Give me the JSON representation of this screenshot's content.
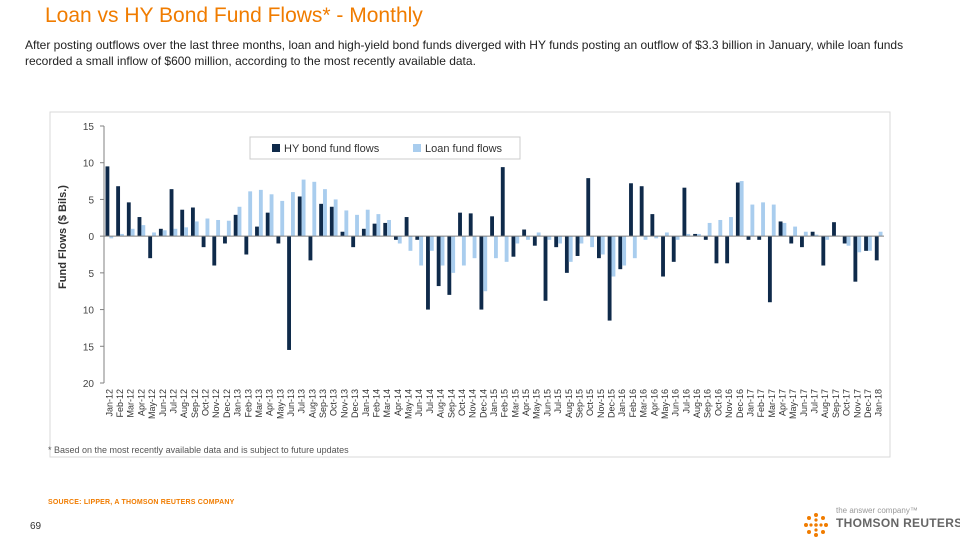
{
  "header": {
    "title": "Loan vs HY Bond Fund Flows* - Monthly",
    "subtitle": "After posting outflows over the last three months, loan and high-yield bond funds diverged with HY funds posting an outflow of $3.3 billion in January, while loan funds recorded a small inflow of $600 million, according to the most recently available data."
  },
  "footer": {
    "footnote": "* Based on the most recently available data and is subject to future updates",
    "source": "SOURCE: LIPPER, A THOMSON REUTERS COMPANY",
    "page_number": "69",
    "brand_tagline": "the answer company™",
    "brand_name": "THOMSON REUTERS®"
  },
  "colors": {
    "title": "#f07c00",
    "hy": "#0f2a4a",
    "loan": "#a9cdee",
    "axis": "#808080",
    "grid": "#e0e0e0"
  },
  "chart_data": {
    "type": "bar",
    "title": "Loan vs HY Bond Fund Flows* - Monthly",
    "xlabel": "",
    "ylabel": "Fund Flows ($ Bils.)",
    "ylim": [
      -20,
      15
    ],
    "yticks": [
      15,
      10,
      5,
      0,
      -5,
      -10,
      -15,
      -20
    ],
    "ytick_labels": [
      "15",
      "10",
      "5",
      "0",
      "5",
      "10",
      "15",
      "20"
    ],
    "grid": false,
    "legend_position": "top-center",
    "categories": [
      "Jan-12",
      "Feb-12",
      "Mar-12",
      "Apr-12",
      "May-12",
      "Jun-12",
      "Jul-12",
      "Aug-12",
      "Sep-12",
      "Oct-12",
      "Nov-12",
      "Dec-12",
      "Jan-13",
      "Feb-13",
      "Mar-13",
      "Apr-13",
      "May-13",
      "Jun-13",
      "Jul-13",
      "Aug-13",
      "Sep-13",
      "Oct-13",
      "Nov-13",
      "Dec-13",
      "Jan-14",
      "Feb-14",
      "Mar-14",
      "Apr-14",
      "May-14",
      "Jun-14",
      "Jul-14",
      "Aug-14",
      "Sep-14",
      "Oct-14",
      "Nov-14",
      "Dec-14",
      "Jan-15",
      "Feb-15",
      "Mar-15",
      "Apr-15",
      "May-15",
      "Jun-15",
      "Jul-15",
      "Aug-15",
      "Sep-15",
      "Oct-15",
      "Nov-15",
      "Dec-15",
      "Jan-16",
      "Feb-16",
      "Mar-16",
      "Apr-16",
      "May-16",
      "Jun-16",
      "Jul-16",
      "Aug-16",
      "Sep-16",
      "Oct-16",
      "Nov-16",
      "Dec-16",
      "Jan-17",
      "Feb-17",
      "Mar-17",
      "Apr-17",
      "May-17",
      "Jun-17",
      "Jul-17",
      "Aug-17",
      "Sep-17",
      "Oct-17",
      "Nov-17",
      "Dec-17",
      "Jan-18"
    ],
    "series": [
      {
        "name": "HY bond fund flows",
        "values": [
          9.5,
          6.8,
          4.6,
          2.6,
          -3.0,
          1.0,
          6.4,
          3.6,
          3.9,
          -1.5,
          -4.0,
          -1.0,
          2.9,
          -2.5,
          1.3,
          3.2,
          -1.0,
          -15.5,
          5.4,
          -3.3,
          4.4,
          4.0,
          0.6,
          -1.5,
          1.0,
          1.7,
          1.8,
          -0.5,
          2.6,
          -0.5,
          -10.0,
          -6.8,
          -8.0,
          3.2,
          3.1,
          -10.0,
          2.7,
          9.4,
          -2.8,
          0.9,
          -1.3,
          -8.8,
          -1.5,
          -5.0,
          -2.7,
          7.9,
          -3.0,
          -11.5,
          -4.5,
          7.2,
          6.8,
          3.0,
          -5.5,
          -3.5,
          6.6,
          0.3,
          -0.5,
          -3.7,
          -3.7,
          7.3,
          -0.5,
          -0.5,
          -9.0,
          2.0,
          -1.0,
          -1.5,
          0.6,
          -4.0,
          1.9,
          -1.0,
          -6.2,
          -2.0,
          -3.3
        ]
      },
      {
        "name": "Loan fund flows",
        "values": [
          -0.3,
          0.3,
          1.0,
          1.5,
          0.5,
          0.8,
          1.0,
          1.2,
          2.0,
          2.4,
          2.2,
          2.1,
          4.0,
          6.1,
          6.3,
          5.7,
          4.8,
          6.0,
          7.7,
          7.4,
          6.4,
          5.0,
          3.5,
          2.9,
          3.6,
          3.0,
          2.2,
          -1.0,
          -2.0,
          -4.0,
          -2.0,
          -4.0,
          -5.0,
          -4.0,
          -3.0,
          -7.5,
          -3.0,
          -3.5,
          -1.0,
          -0.5,
          0.5,
          -0.5,
          -1.0,
          -3.5,
          -1.0,
          -1.5,
          -2.5,
          -5.5,
          -4.0,
          -3.0,
          -0.5,
          -0.3,
          0.5,
          -0.5,
          0.3,
          0.3,
          1.8,
          2.2,
          2.6,
          7.5,
          4.3,
          4.6,
          4.3,
          1.8,
          1.3,
          0.6,
          0.2,
          -0.5,
          0.1,
          -1.3,
          -2.2,
          -2.0,
          0.6
        ]
      }
    ]
  }
}
